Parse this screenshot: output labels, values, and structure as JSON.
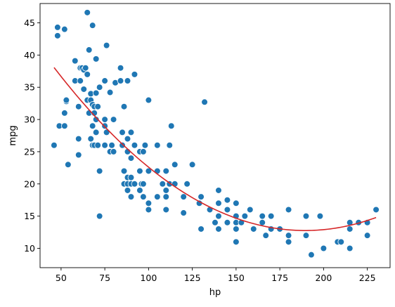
{
  "chart_data": {
    "type": "scatter",
    "xlabel": "hp",
    "ylabel": "mpg",
    "xlim": [
      38,
      238
    ],
    "ylim": [
      7,
      48
    ],
    "x_ticks": [
      50,
      75,
      100,
      125,
      150,
      175,
      200,
      225
    ],
    "y_ticks": [
      10,
      15,
      20,
      25,
      30,
      35,
      40,
      45
    ],
    "grid": false,
    "legend": "none",
    "colors": {
      "points": "#1f77b4",
      "point_edge": "#ffffff",
      "fit_line": "#d62728"
    },
    "fit": {
      "type": "quadratic",
      "x_range": [
        46,
        230
      ],
      "coefficients": [
        56.9,
        -0.466,
        0.00123
      ]
    },
    "series": [
      {
        "points": [
          [
            46,
            26
          ],
          [
            48,
            43
          ],
          [
            48,
            44.3
          ],
          [
            49,
            29
          ],
          [
            52,
            44
          ],
          [
            52,
            29
          ],
          [
            52,
            31
          ],
          [
            53,
            32.8
          ],
          [
            53,
            33
          ],
          [
            54,
            23
          ],
          [
            58,
            39.1
          ],
          [
            58,
            36
          ],
          [
            60,
            27
          ],
          [
            60,
            24.5
          ],
          [
            60,
            32
          ],
          [
            61,
            38
          ],
          [
            61,
            36
          ],
          [
            62,
            38
          ],
          [
            63,
            37.7
          ],
          [
            63,
            34.7
          ],
          [
            64,
            38
          ],
          [
            65,
            46.6
          ],
          [
            65,
            37
          ],
          [
            65,
            33
          ],
          [
            66,
            31
          ],
          [
            66,
            40.8
          ],
          [
            67,
            34
          ],
          [
            67,
            33
          ],
          [
            67,
            27
          ],
          [
            68,
            44.6
          ],
          [
            68,
            32.3
          ],
          [
            68,
            29
          ],
          [
            68,
            26
          ],
          [
            69,
            26
          ],
          [
            69,
            31
          ],
          [
            69,
            32
          ],
          [
            70,
            34.1
          ],
          [
            70,
            30
          ],
          [
            70,
            39.4
          ],
          [
            70,
            28
          ],
          [
            71,
            32
          ],
          [
            71,
            26
          ],
          [
            72,
            35
          ],
          [
            72,
            22
          ],
          [
            72,
            15
          ],
          [
            75,
            36
          ],
          [
            75,
            29
          ],
          [
            75,
            26
          ],
          [
            75,
            30
          ],
          [
            76,
            41.5
          ],
          [
            76,
            28
          ],
          [
            78,
            25
          ],
          [
            78,
            34.2
          ],
          [
            79,
            26
          ],
          [
            80,
            30
          ],
          [
            80,
            25
          ],
          [
            81,
            35.7
          ],
          [
            84,
            38
          ],
          [
            84,
            36
          ],
          [
            85,
            28
          ],
          [
            85,
            26
          ],
          [
            86,
            20
          ],
          [
            86,
            32
          ],
          [
            86,
            22
          ],
          [
            88,
            36
          ],
          [
            88,
            27
          ],
          [
            88,
            25
          ],
          [
            88,
            21
          ],
          [
            88,
            20
          ],
          [
            88,
            19
          ],
          [
            90,
            28
          ],
          [
            90,
            24
          ],
          [
            90,
            21
          ],
          [
            90,
            20
          ],
          [
            90,
            18
          ],
          [
            92,
            37
          ],
          [
            92,
            26
          ],
          [
            92,
            20
          ],
          [
            95,
            25
          ],
          [
            95,
            22
          ],
          [
            95,
            19
          ],
          [
            96,
            20
          ],
          [
            97,
            25
          ],
          [
            97,
            20
          ],
          [
            97,
            18
          ],
          [
            98,
            26
          ],
          [
            100,
            33
          ],
          [
            100,
            22
          ],
          [
            100,
            17
          ],
          [
            100,
            16
          ],
          [
            105,
            26
          ],
          [
            105,
            22
          ],
          [
            105,
            18
          ],
          [
            108,
            20
          ],
          [
            110,
            22
          ],
          [
            110,
            19
          ],
          [
            110,
            16
          ],
          [
            110,
            18
          ],
          [
            112,
            26
          ],
          [
            112,
            20
          ],
          [
            113,
            29
          ],
          [
            115,
            23
          ],
          [
            115,
            20
          ],
          [
            120,
            18
          ],
          [
            120,
            15.5
          ],
          [
            122,
            20
          ],
          [
            125,
            23
          ],
          [
            129,
            17
          ],
          [
            130,
            18
          ],
          [
            130,
            13
          ],
          [
            132,
            32.7
          ],
          [
            135,
            16
          ],
          [
            138,
            14
          ],
          [
            140,
            19
          ],
          [
            140,
            17
          ],
          [
            140,
            15
          ],
          [
            140,
            13
          ],
          [
            145,
            16
          ],
          [
            145,
            14
          ],
          [
            145,
            17.5
          ],
          [
            150,
            17
          ],
          [
            150,
            15
          ],
          [
            150,
            14
          ],
          [
            150,
            13
          ],
          [
            150,
            11
          ],
          [
            153,
            14
          ],
          [
            155,
            15
          ],
          [
            158,
            16
          ],
          [
            160,
            13
          ],
          [
            165,
            15
          ],
          [
            165,
            14
          ],
          [
            167,
            12
          ],
          [
            170,
            15
          ],
          [
            170,
            13
          ],
          [
            175,
            13
          ],
          [
            180,
            16
          ],
          [
            180,
            12
          ],
          [
            180,
            11
          ],
          [
            190,
            15
          ],
          [
            190,
            12
          ],
          [
            193,
            9
          ],
          [
            198,
            15
          ],
          [
            200,
            10
          ],
          [
            208,
            11
          ],
          [
            210,
            11
          ],
          [
            215,
            14
          ],
          [
            215,
            13
          ],
          [
            215,
            10
          ],
          [
            220,
            14
          ],
          [
            225,
            14
          ],
          [
            225,
            12
          ],
          [
            230,
            16
          ]
        ]
      }
    ]
  }
}
